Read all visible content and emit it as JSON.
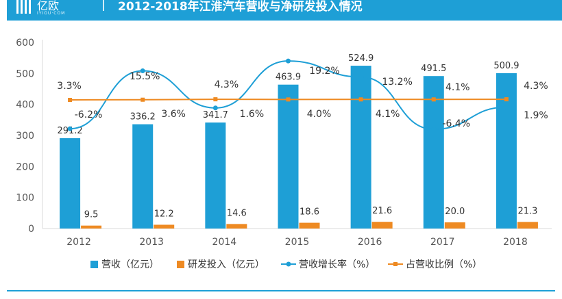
{
  "header": {
    "logo": "亿欧",
    "logo_sub": "IYIOU·COM",
    "title": "2012-2018年江淮汽车营收与净研发投入情况"
  },
  "colors": {
    "revenue": "#1e9fd6",
    "rd": "#ee8a22",
    "growth": "#1e9fd6",
    "ratio": "#ee8a22",
    "axis_text": "#555555",
    "grid": "#d9d9d9"
  },
  "chart_data": {
    "type": "bar",
    "title": "2012-2018年江淮汽车营收与净研发投入情况",
    "categories": [
      "2012",
      "2013",
      "2014",
      "2015",
      "2016",
      "2017",
      "2018"
    ],
    "ylim": [
      0,
      600
    ],
    "yticks": [
      "0",
      "100",
      "200",
      "300",
      "400",
      "500",
      "600"
    ],
    "series": [
      {
        "name": "营收（亿元）",
        "kind": "bar",
        "values": [
          291.2,
          336.2,
          341.7,
          463.9,
          524.9,
          491.5,
          500.9
        ],
        "labels": [
          "291.2",
          "336.2",
          "341.7",
          "463.9",
          "524.9",
          "491.5",
          "500.9"
        ]
      },
      {
        "name": "研发投入（亿元）",
        "kind": "bar",
        "values": [
          9.5,
          12.2,
          14.6,
          18.6,
          21.6,
          20.0,
          21.3
        ],
        "labels": [
          "9.5",
          "12.2",
          "14.6",
          "18.6",
          "21.6",
          "20.0",
          "21.3"
        ]
      },
      {
        "name": "营收增长率（%）",
        "kind": "line",
        "axis": "secondary",
        "values": [
          -6.2,
          15.5,
          1.6,
          19.2,
          13.2,
          -6.4,
          1.9
        ],
        "labels": [
          "-6.2%",
          "15.5%",
          "1.6%",
          "19.2%",
          "13.2%",
          "-6.4%",
          "1.9%"
        ]
      },
      {
        "name": "占营收比例（%）",
        "kind": "line",
        "axis": "secondary",
        "values": [
          3.3,
          3.6,
          4.3,
          4.0,
          4.1,
          4.1,
          4.3
        ],
        "labels": [
          "3.3%",
          "3.6%",
          "4.3%",
          "4.0%",
          "4.1%",
          "4.1%",
          "4.3%"
        ]
      }
    ],
    "legend_position": "bottom"
  }
}
